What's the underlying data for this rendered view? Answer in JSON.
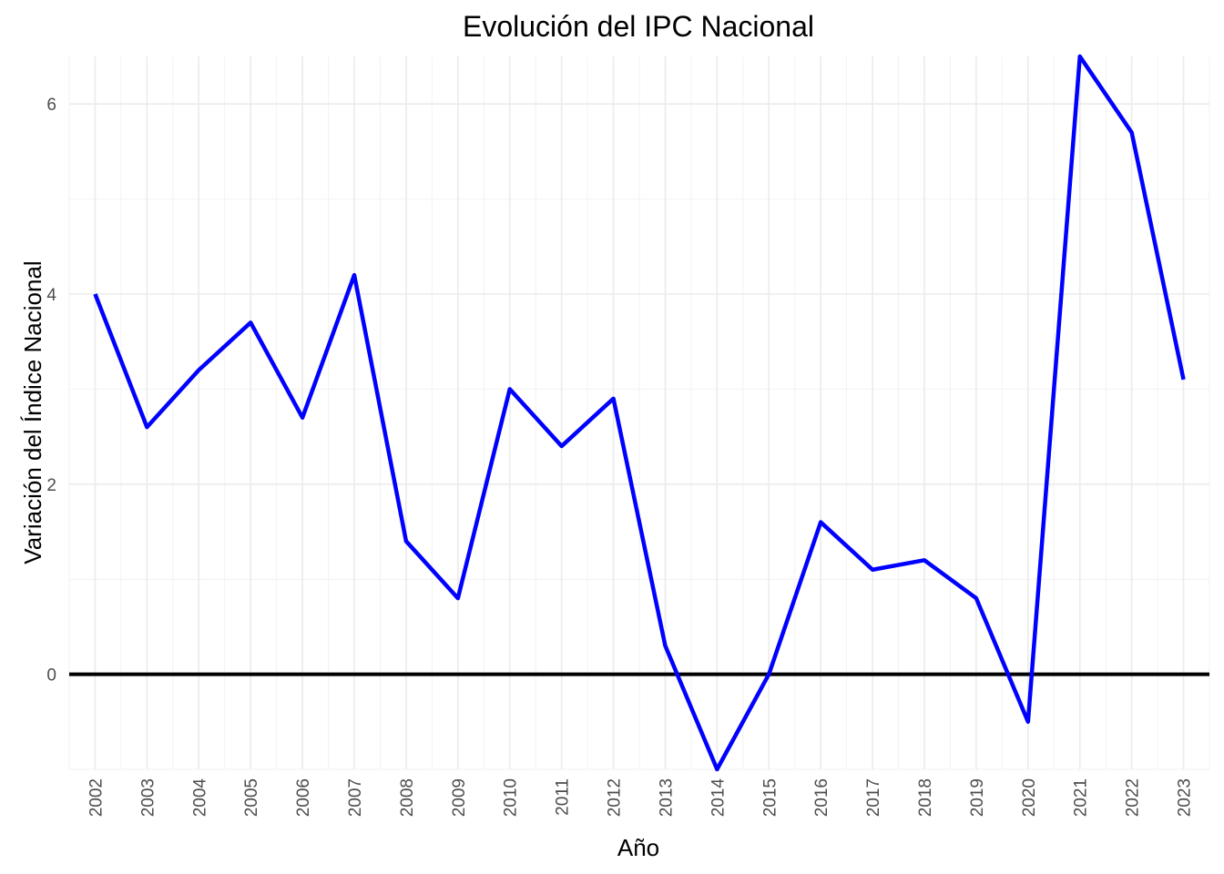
{
  "chart_data": {
    "type": "line",
    "title": "Evolución del IPC Nacional",
    "xlabel": "Año",
    "ylabel": "Variación del Índice Nacional",
    "x": [
      2002,
      2003,
      2004,
      2005,
      2006,
      2007,
      2008,
      2009,
      2010,
      2011,
      2012,
      2013,
      2014,
      2015,
      2016,
      2017,
      2018,
      2019,
      2020,
      2021,
      2022,
      2023
    ],
    "x_tick_labels": [
      "2002",
      "2003",
      "2004",
      "2005",
      "2006",
      "2007",
      "2008",
      "2009",
      "2010",
      "2011",
      "2012",
      "2013",
      "2014",
      "2015",
      "2016",
      "2017",
      "2018",
      "2019",
      "2020",
      "2021",
      "2022",
      "2023"
    ],
    "series": [
      {
        "values": [
          4.0,
          2.6,
          3.2,
          3.7,
          2.7,
          4.2,
          1.4,
          0.8,
          3.0,
          2.4,
          2.9,
          0.3,
          -1.0,
          0.0,
          1.6,
          1.1,
          1.2,
          0.8,
          -0.5,
          6.5,
          5.7,
          3.1
        ],
        "color": "#0000ff"
      }
    ],
    "xlim": [
      2001.5,
      2023.5
    ],
    "ylim": [
      -1.0,
      6.5
    ],
    "y_ticks": [
      0,
      2,
      4,
      6
    ],
    "y_tick_labels": [
      "0",
      "2",
      "4",
      "6"
    ],
    "reference_line": {
      "y": 0,
      "color": "#000000"
    },
    "grid": true,
    "legend": "none"
  }
}
